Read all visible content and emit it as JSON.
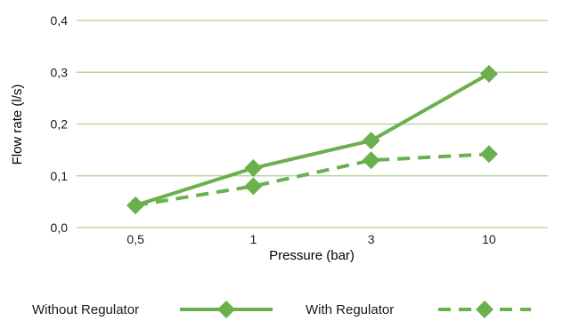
{
  "chart_data": {
    "type": "line",
    "title": "",
    "xlabel": "Pressure (bar)",
    "ylabel": "Flow rate (l/s)",
    "categories": [
      "0,5",
      "1",
      "3",
      "10"
    ],
    "ylim": [
      0,
      0.4
    ],
    "yticks": [
      "0,0",
      "0,1",
      "0,2",
      "0,3",
      "0,4"
    ],
    "grid": true,
    "legend_position": "bottom",
    "series": [
      {
        "name": "Without Regulator",
        "values": [
          0.043,
          0.115,
          0.168,
          0.297
        ],
        "line_style": "solid",
        "color": "#6ab04c"
      },
      {
        "name": "With Regulator",
        "values": [
          0.043,
          0.08,
          0.13,
          0.142
        ],
        "line_style": "dashed",
        "color": "#6ab04c"
      }
    ]
  },
  "colors": {
    "gridline": "#a9d18e",
    "series": "#6ab04c",
    "text": "#1a1a1a"
  }
}
